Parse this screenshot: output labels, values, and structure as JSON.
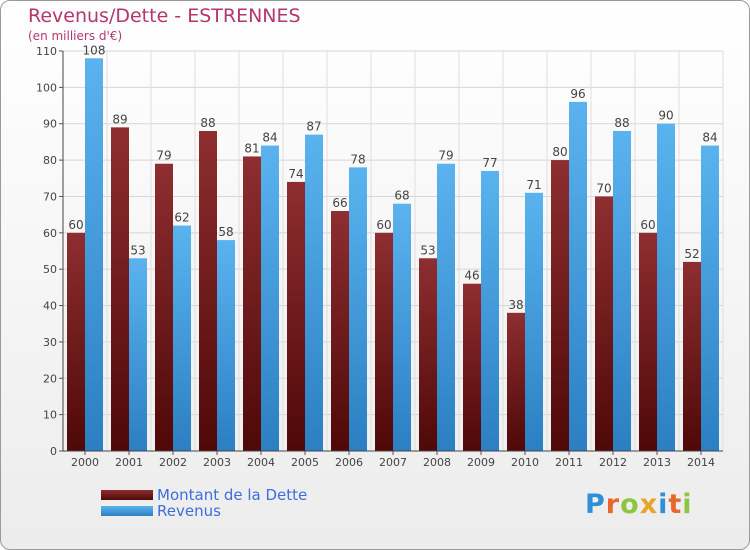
{
  "title": "Revenus/Dette - ESTRENNES",
  "subtitle": "(en milliers d'€)",
  "logo_text": "Proxiti",
  "colors": {
    "title": "#b5366d",
    "dette": "#7d1f22",
    "revenus": "#3a9ee4",
    "legend_text": "#3c6fdc"
  },
  "chart_data": {
    "type": "bar",
    "title": "Revenus/Dette - ESTRENNES",
    "ylabel": "(en milliers d'€)",
    "xlabel": "",
    "categories": [
      "2000",
      "2001",
      "2002",
      "2003",
      "2004",
      "2005",
      "2006",
      "2007",
      "2008",
      "2009",
      "2010",
      "2011",
      "2012",
      "2013",
      "2014"
    ],
    "series": [
      {
        "name": "Montant de la Dette",
        "color": "#7d1f22",
        "values": [
          60,
          89,
          79,
          88,
          81,
          74,
          66,
          60,
          53,
          46,
          38,
          80,
          70,
          60,
          52
        ]
      },
      {
        "name": "Revenus",
        "color": "#3a9ee4",
        "values": [
          108,
          53,
          62,
          58,
          84,
          87,
          78,
          68,
          79,
          77,
          71,
          96,
          88,
          90,
          84
        ]
      }
    ],
    "ylim": [
      0,
      110
    ],
    "yticks": [
      0,
      10,
      20,
      30,
      40,
      50,
      60,
      70,
      80,
      90,
      100,
      110
    ],
    "grid": true,
    "legend_position": "bottom-left",
    "data_labels": true
  }
}
